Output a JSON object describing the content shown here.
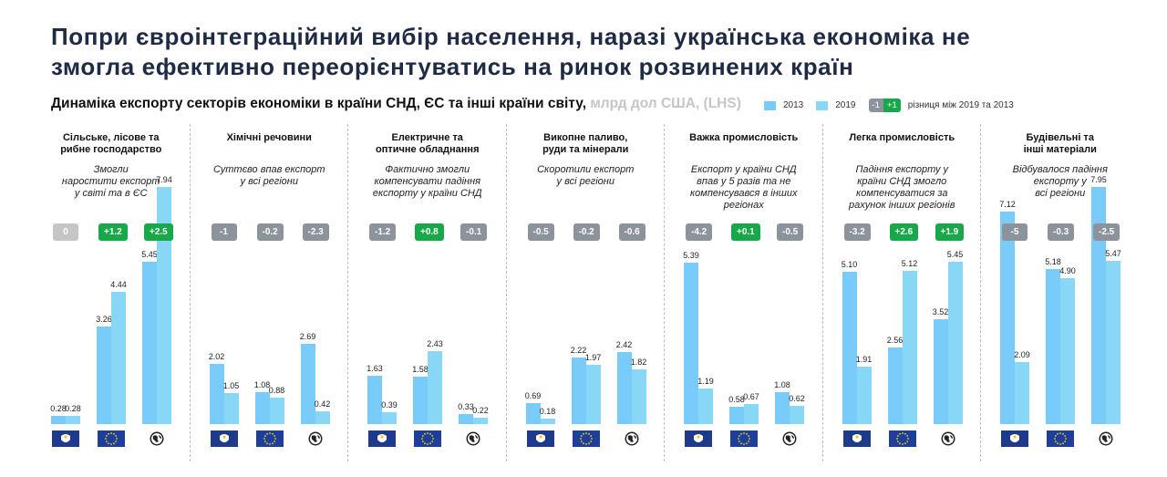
{
  "title_line1": "Попри євроінтеграційний вибір населення, наразі українська економіка не",
  "title_line2": "змогла ефективно переорієнтуватись на ринок розвинених країн",
  "subtitle": "Динаміка експорту секторів економіки в країни СНД, ЄС та інші країни світу,",
  "subtitle_unit": "млрд дол США, (LHS)",
  "legend": {
    "y2013": "2013",
    "y2019": "2019",
    "neg": "-1",
    "pos": "+1",
    "diff_label": "різниця між 2019 та 2013"
  },
  "colors": {
    "y2013": "#79cbfa",
    "y2019": "#88d7f6",
    "negative": "#8d939b",
    "positive": "#17a84a",
    "zero": "#c5c5c5",
    "title": "#1f2b45"
  },
  "chart_data": {
    "type": "bar",
    "series_names": [
      "2013",
      "2019"
    ],
    "regions": [
      {
        "id": "cis",
        "icon": "cis-flag-icon"
      },
      {
        "id": "eu",
        "icon": "eu-flag-icon"
      },
      {
        "id": "world",
        "icon": "globe-icon"
      }
    ],
    "ylim": [
      0,
      8
    ],
    "panels": [
      {
        "title": "Сільське, лісове та\nрибне господарство",
        "note": "Змогли\nнаростити експорт\nу світі та в ЄС",
        "groups": [
          {
            "v2013": 0.28,
            "v2019": 0.28,
            "l2013": "0.28",
            "l2019": "0.28",
            "diff": "0",
            "sign": "zero"
          },
          {
            "v2013": 3.26,
            "v2019": 4.44,
            "l2013": "3.26",
            "l2019": "4.44",
            "diff": "+1.2",
            "sign": "pos"
          },
          {
            "v2013": 5.45,
            "v2019": 7.94,
            "l2013": "5.45",
            "l2019": "7.94",
            "diff": "+2.5",
            "sign": "pos"
          }
        ]
      },
      {
        "title": "Хімічні речовини",
        "note": "Суттєво впав експорт\nу всі регіони",
        "groups": [
          {
            "v2013": 2.02,
            "v2019": 1.05,
            "l2013": "2.02",
            "l2019": "1.05",
            "diff": "-1",
            "sign": "neg"
          },
          {
            "v2013": 1.08,
            "v2019": 0.88,
            "l2013": "1.08",
            "l2019": "0.88",
            "diff": "-0.2",
            "sign": "neg"
          },
          {
            "v2013": 2.69,
            "v2019": 0.42,
            "l2013": "2.69",
            "l2019": "0.42",
            "diff": "-2.3",
            "sign": "neg"
          }
        ]
      },
      {
        "title": "Електричне та\nоптичне обладнання",
        "note": "Фактично змогли\nкомпенсувати падіння\nекспорту у країни СНД",
        "groups": [
          {
            "v2013": 1.63,
            "v2019": 0.39,
            "l2013": "1.63",
            "l2019": "0.39",
            "diff": "-1.2",
            "sign": "neg"
          },
          {
            "v2013": 1.58,
            "v2019": 2.43,
            "l2013": "1.58",
            "l2019": "2.43",
            "diff": "+0.8",
            "sign": "pos"
          },
          {
            "v2013": 0.33,
            "v2019": 0.22,
            "l2013": "0.33",
            "l2019": "0.22",
            "diff": "-0.1",
            "sign": "neg"
          }
        ]
      },
      {
        "title": "Викопне паливо,\nруди та мінерали",
        "note": "Скоротили експорт\nу всі регіони",
        "groups": [
          {
            "v2013": 0.69,
            "v2019": 0.18,
            "l2013": "0.69",
            "l2019": "0.18",
            "diff": "-0.5",
            "sign": "neg"
          },
          {
            "v2013": 2.22,
            "v2019": 1.97,
            "l2013": "2.22",
            "l2019": "1.97",
            "diff": "-0.2",
            "sign": "neg"
          },
          {
            "v2013": 2.42,
            "v2019": 1.82,
            "l2013": "2.42",
            "l2019": "1.82",
            "diff": "-0.6",
            "sign": "neg"
          }
        ]
      },
      {
        "title": "Важка промисловість",
        "note": "Експорт у країни СНД\nвпав у 5 разів та не\nкомпенсувався в інших\nрегіонах",
        "groups": [
          {
            "v2013": 5.39,
            "v2019": 1.19,
            "l2013": "5.39",
            "l2019": "1.19",
            "diff": "-4.2",
            "sign": "neg"
          },
          {
            "v2013": 0.58,
            "v2019": 0.67,
            "l2013": "0.58",
            "l2019": "0.67",
            "diff": "+0.1",
            "sign": "pos"
          },
          {
            "v2013": 1.08,
            "v2019": 0.62,
            "l2013": "1.08",
            "l2019": "0.62",
            "diff": "-0.5",
            "sign": "neg"
          }
        ]
      },
      {
        "title": "Легка промисловість",
        "note": "Падіння експорту у\nкраїни СНД змогло\nкомпенсуватися за\nрахунок інших регіонів",
        "groups": [
          {
            "v2013": 5.1,
            "v2019": 1.91,
            "l2013": "5.10",
            "l2019": "1.91",
            "diff": "-3.2",
            "sign": "neg"
          },
          {
            "v2013": 2.56,
            "v2019": 5.12,
            "l2013": "2.56",
            "l2019": "5.12",
            "diff": "+2.6",
            "sign": "pos"
          },
          {
            "v2013": 3.52,
            "v2019": 5.45,
            "l2013": "3.52",
            "l2019": "5.45",
            "diff": "+1.9",
            "sign": "pos"
          }
        ]
      },
      {
        "title": "Будівельні та\nінші матеріали",
        "note": "Відбувалося падіння\nекспорту у\nвсі регіони",
        "groups": [
          {
            "v2013": 7.12,
            "v2019": 2.09,
            "l2013": "7.12",
            "l2019": "2.09",
            "diff": "-5",
            "sign": "neg"
          },
          {
            "v2013": 5.18,
            "v2019": 4.9,
            "l2013": "5.18",
            "l2019": "4.90",
            "diff": "-0.3",
            "sign": "neg"
          },
          {
            "v2013": 7.95,
            "v2019": 5.47,
            "l2013": "7.95",
            "l2019": "5.47",
            "diff": "-2.5",
            "sign": "neg"
          }
        ]
      }
    ]
  }
}
